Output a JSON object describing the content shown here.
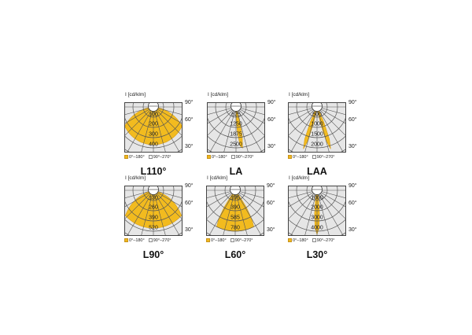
{
  "legend": {
    "item1": "0°–180°",
    "item2": "90°–270°"
  },
  "angles": {
    "a90": "90°",
    "a60": "60°",
    "a30": "30°"
  },
  "colors": {
    "fill": "#f2bb1f",
    "grid": "#555555",
    "background": "#e6e6e6"
  },
  "panels": [
    {
      "title": "L110°",
      "unit": "I [cd/klm]",
      "ring_labels": [
        "100",
        "200",
        "300",
        "400"
      ],
      "shape": "wide-bowl"
    },
    {
      "title": "LA",
      "unit": "I [cd/klm]",
      "ring_labels": [
        "625",
        "1250",
        "1875",
        "2500"
      ],
      "shape": "single-narrow-lobe"
    },
    {
      "title": "LAA",
      "unit": "I [cd/klm]",
      "ring_labels": [
        "500",
        "1000",
        "1500",
        "2000"
      ],
      "shape": "twin-narrow-lobes"
    },
    {
      "title": "L90°",
      "unit": "I [cd/klm]",
      "ring_labels": [
        "130",
        "260",
        "390",
        "520"
      ],
      "shape": "bowl"
    },
    {
      "title": "L60°",
      "unit": "I [cd/klm]",
      "ring_labels": [
        "195",
        "390",
        "585",
        "780"
      ],
      "shape": "cone-60"
    },
    {
      "title": "L30°",
      "unit": "I [cd/klm]",
      "ring_labels": [
        "1000",
        "2000",
        "3000",
        "4000"
      ],
      "shape": "narrow-spot"
    }
  ]
}
